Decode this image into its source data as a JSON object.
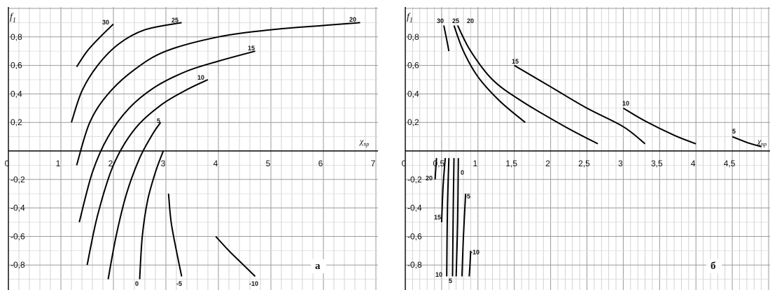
{
  "chart_data": [
    {
      "type": "line",
      "panel_label": "а",
      "ylabel": "f₁",
      "xlabel": "χ_пр",
      "xlim": [
        0,
        7
      ],
      "ylim": [
        -1.0,
        1.0
      ],
      "grid": true,
      "x_ticks": [
        "0",
        "1",
        "2",
        "3",
        "4",
        "5",
        "6",
        "7"
      ],
      "y_ticks": [
        "0,8",
        "0,6",
        "0,4",
        "0,2",
        "-0,2",
        "-0,4",
        "-0,6",
        "-0,8"
      ],
      "series": [
        {
          "name": "30",
          "points": [
            [
              1.3,
              0.59
            ],
            [
              1.5,
              0.7
            ],
            [
              1.75,
              0.8
            ],
            [
              2.0,
              0.89
            ]
          ]
        },
        {
          "name": "25",
          "points": [
            [
              1.2,
              0.2
            ],
            [
              1.4,
              0.42
            ],
            [
              1.7,
              0.6
            ],
            [
              2.1,
              0.75
            ],
            [
              2.6,
              0.85
            ],
            [
              3.3,
              0.9
            ]
          ]
        },
        {
          "name": "20",
          "points": [
            [
              1.3,
              -0.1
            ],
            [
              1.55,
              0.2
            ],
            [
              1.9,
              0.4
            ],
            [
              2.4,
              0.57
            ],
            [
              3.0,
              0.7
            ],
            [
              4.0,
              0.8
            ],
            [
              5.0,
              0.85
            ],
            [
              6.0,
              0.88
            ],
            [
              6.7,
              0.9
            ]
          ]
        },
        {
          "name": "15",
          "points": [
            [
              1.35,
              -0.5
            ],
            [
              1.6,
              -0.15
            ],
            [
              1.9,
              0.1
            ],
            [
              2.3,
              0.3
            ],
            [
              2.8,
              0.45
            ],
            [
              3.4,
              0.56
            ],
            [
              4.0,
              0.63
            ],
            [
              4.7,
              0.7
            ]
          ]
        },
        {
          "name": "10",
          "points": [
            [
              1.5,
              -0.8
            ],
            [
              1.7,
              -0.45
            ],
            [
              2.0,
              -0.1
            ],
            [
              2.4,
              0.15
            ],
            [
              2.9,
              0.32
            ],
            [
              3.4,
              0.43
            ],
            [
              3.8,
              0.5
            ]
          ]
        },
        {
          "name": "5",
          "points": [
            [
              1.9,
              -0.9
            ],
            [
              2.05,
              -0.6
            ],
            [
              2.25,
              -0.3
            ],
            [
              2.5,
              -0.05
            ],
            [
              2.75,
              0.12
            ],
            [
              2.9,
              0.2
            ]
          ]
        },
        {
          "name": "0",
          "points": [
            [
              2.5,
              -0.9
            ],
            [
              2.55,
              -0.6
            ],
            [
              2.65,
              -0.35
            ],
            [
              2.8,
              -0.15
            ],
            [
              2.95,
              0.0
            ]
          ]
        },
        {
          "name": "-5",
          "points": [
            [
              3.05,
              -0.3
            ],
            [
              3.1,
              -0.5
            ],
            [
              3.2,
              -0.7
            ],
            [
              3.3,
              -0.88
            ]
          ]
        },
        {
          "name": "-10",
          "points": [
            [
              3.95,
              -0.6
            ],
            [
              4.2,
              -0.7
            ],
            [
              4.45,
              -0.79
            ],
            [
              4.7,
              -0.88
            ]
          ]
        }
      ]
    },
    {
      "type": "line",
      "panel_label": "б",
      "ylabel": "f₁",
      "xlabel": "χ_пр",
      "xlim": [
        0,
        5
      ],
      "ylim": [
        -1.0,
        1.0
      ],
      "grid": true,
      "x_ticks": [
        "0",
        "0,5",
        "1",
        "1,5",
        "2",
        "2,5",
        "3",
        "3,5",
        "4",
        "4,5"
      ],
      "y_ticks": [
        "0,8",
        "0,6",
        "0,4",
        "0,2",
        "-0,2",
        "-0,4",
        "-0,6",
        "-0,8"
      ],
      "series": [
        {
          "name": "30",
          "points": [
            [
              0.53,
              0.88
            ],
            [
              0.57,
              0.78
            ],
            [
              0.6,
              0.7
            ]
          ]
        },
        {
          "name": "25",
          "points": [
            [
              0.67,
              0.88
            ],
            [
              0.8,
              0.7
            ],
            [
              1.0,
              0.52
            ],
            [
              1.3,
              0.35
            ],
            [
              1.65,
              0.2
            ]
          ]
        },
        {
          "name": "20",
          "points": [
            [
              0.72,
              0.88
            ],
            [
              0.9,
              0.7
            ],
            [
              1.2,
              0.5
            ],
            [
              1.6,
              0.35
            ],
            [
              2.2,
              0.17
            ],
            [
              2.65,
              0.05
            ]
          ]
        },
        {
          "name": "15",
          "points": [
            [
              1.5,
              0.6
            ],
            [
              2.0,
              0.45
            ],
            [
              2.5,
              0.3
            ],
            [
              3.0,
              0.17
            ],
            [
              3.3,
              0.05
            ]
          ]
        },
        {
          "name": "10",
          "points": [
            [
              3.0,
              0.3
            ],
            [
              3.3,
              0.21
            ],
            [
              3.7,
              0.11
            ],
            [
              4.0,
              0.05
            ]
          ]
        },
        {
          "name": "5",
          "points": [
            [
              4.5,
              0.1
            ],
            [
              4.7,
              0.06
            ],
            [
              4.9,
              0.03
            ]
          ]
        },
        {
          "name": "20",
          "points": [
            [
              0.43,
              -0.05
            ],
            [
              0.42,
              -0.12
            ],
            [
              0.41,
              -0.2
            ]
          ]
        },
        {
          "name": "15",
          "points": [
            [
              0.55,
              -0.05
            ],
            [
              0.52,
              -0.25
            ],
            [
              0.5,
              -0.5
            ]
          ]
        },
        {
          "name": "10",
          "points": [
            [
              0.6,
              -0.05
            ],
            [
              0.58,
              -0.4
            ],
            [
              0.57,
              -0.88
            ]
          ]
        },
        {
          "name": "5",
          "points": [
            [
              0.67,
              -0.05
            ],
            [
              0.66,
              -0.4
            ],
            [
              0.65,
              -0.88
            ]
          ]
        },
        {
          "name": "0",
          "points": [
            [
              0.73,
              -0.05
            ],
            [
              0.72,
              -0.5
            ],
            [
              0.7,
              -0.88
            ]
          ]
        },
        {
          "name": "-5",
          "points": [
            [
              0.83,
              -0.3
            ],
            [
              0.8,
              -0.6
            ],
            [
              0.78,
              -0.88
            ]
          ]
        },
        {
          "name": "-10",
          "points": [
            [
              0.9,
              -0.7
            ],
            [
              0.89,
              -0.8
            ],
            [
              0.88,
              -0.88
            ]
          ]
        }
      ]
    }
  ]
}
